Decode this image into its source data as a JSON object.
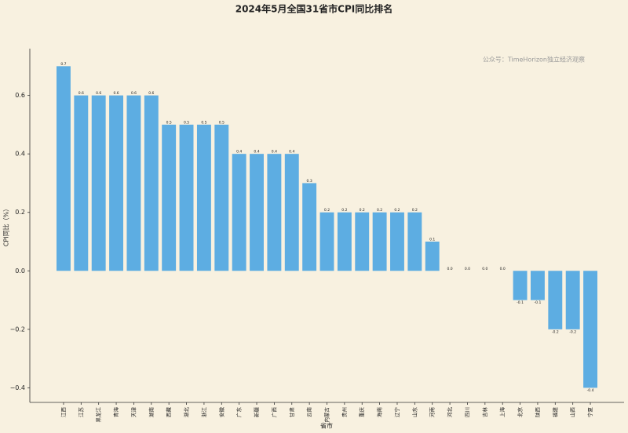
{
  "chart_data": {
    "type": "bar",
    "title": "2024年5月全国31省市CPI同比排名",
    "xlabel": "省市",
    "ylabel": "CPI同比（%）",
    "annotation": "公众号：TimeHorizon独立经济观察",
    "color": "#5dade2",
    "categories": [
      "江西",
      "江苏",
      "黑龙江",
      "青海",
      "天津",
      "湖南",
      "西藏",
      "湖北",
      "浙江",
      "安徽",
      "广东",
      "新疆",
      "广西",
      "甘肃",
      "云南",
      "内蒙古",
      "贵州",
      "重庆",
      "海南",
      "辽宁",
      "山东",
      "河南",
      "河北",
      "四川",
      "吉林",
      "上海",
      "北京",
      "陕西",
      "福建",
      "山西",
      "宁夏"
    ],
    "values": [
      0.7,
      0.6,
      0.6,
      0.6,
      0.6,
      0.6,
      0.5,
      0.5,
      0.5,
      0.5,
      0.4,
      0.4,
      0.4,
      0.4,
      0.3,
      0.2,
      0.2,
      0.2,
      0.2,
      0.2,
      0.2,
      0.1,
      0.0,
      0.0,
      0.0,
      0.0,
      -0.1,
      -0.1,
      -0.2,
      -0.2,
      -0.4
    ],
    "value_labels": [
      "0.7",
      "0.6",
      "0.6",
      "0.6",
      "0.6",
      "0.6",
      "0.5",
      "0.5",
      "0.5",
      "0.5",
      "0.4",
      "0.4",
      "0.4",
      "0.4",
      "0.3",
      "0.2",
      "0.2",
      "0.2",
      "0.2",
      "0.2",
      "0.2",
      "0.1",
      "0.0",
      "0.0",
      "0.0",
      "0.0",
      "-0.1",
      "-0.1",
      "-0.2",
      "-0.2",
      "-0.4"
    ],
    "ylim": [
      -0.45,
      0.76
    ],
    "yticks": [
      {
        "value": -0.4,
        "label": "−0.4"
      },
      {
        "value": -0.2,
        "label": "−0.2"
      },
      {
        "value": 0,
        "label": "0.0"
      },
      0.2,
      0.4,
      0.6
    ]
  }
}
